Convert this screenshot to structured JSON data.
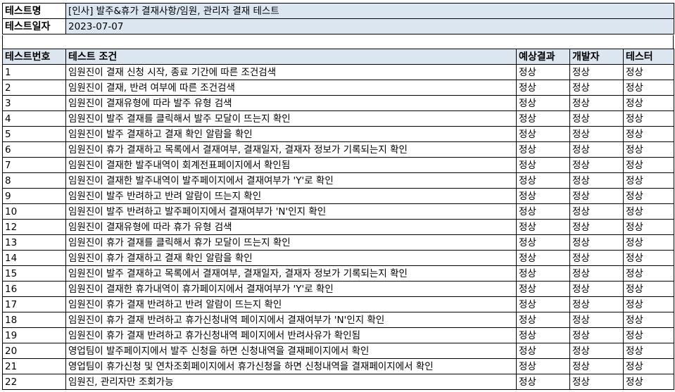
{
  "info": {
    "name_label": "테스트명",
    "name_value": "[인사] 발주&휴가 결재사항/임원, 관리자 결재 테스트",
    "date_label": "테스트일자",
    "date_value": "2023-07-07"
  },
  "table": {
    "headers": [
      "테스트번호",
      "테스트 조건",
      "예상결과",
      "개발자",
      "테스터"
    ],
    "rows": [
      [
        "1",
        "임원진이 결재 신청 시작, 종료 기간에 따른 조건검색",
        "정상",
        "정상",
        "정상"
      ],
      [
        "2",
        "임원진이 결재, 반려 여부에 따른 조건검색",
        "정상",
        "정상",
        "정상"
      ],
      [
        "3",
        "임원진이 결재유형에 따라 발주 유형 검색",
        "정상",
        "정상",
        "정상"
      ],
      [
        "4",
        "임원진이 발주 결재를 클릭해서 발주 모달이 뜨는지 확인",
        "정상",
        "정상",
        "정상"
      ],
      [
        "5",
        "임원진이 발주 결재하고 결재 확인 알람을 확인",
        "정상",
        "정상",
        "정상"
      ],
      [
        "6",
        "임원진이 휴가 결재하고 목록에서 결재여부, 결재일자, 결재자 정보가 기록되는지 확인",
        "정상",
        "정상",
        "정상"
      ],
      [
        "7",
        "임원진이 결재한 발주내역이 회계전표페이지에서 확인됨",
        "정상",
        "정상",
        "정상"
      ],
      [
        "8",
        "임원진이 결재한 발주내역이 발주페이지에서 결재여부가 'Y'로 확인",
        "정상",
        "정상",
        "정상"
      ],
      [
        "9",
        "임원진이 발주 반려하고 반려 알람이 뜨는지 확인",
        "정상",
        "정상",
        "정상"
      ],
      [
        "10",
        "임원진이 발주 반려하고 발주페이지에서 결재여부가 'N'인지 확인",
        "정상",
        "정상",
        "정상"
      ],
      [
        "12",
        "임원진이 결재유형에 따라 휴가 유형 검색",
        "정상",
        "정상",
        "정상"
      ],
      [
        "13",
        "임원진이 휴가 결재를 클릭해서 휴가 모달이 뜨는지 확인",
        "정상",
        "정상",
        "정상"
      ],
      [
        "14",
        "임원진이 휴가 결재하고 결재 확인 알람을 확인",
        "정상",
        "정상",
        "정상"
      ],
      [
        "15",
        "임원진이 발주 결재하고 목록에서 결재여부, 결재일자, 결재자 정보가 기록되는지 확인",
        "정상",
        "정상",
        "정상"
      ],
      [
        "16",
        "임원진이 결재한 휴가내역이 휴가페이지에서 결재여부가 'Y'로 확인",
        "정상",
        "정상",
        "정상"
      ],
      [
        "17",
        "임원진이 휴가 결재 반려하고 반려 알람이 뜨는지 확인",
        "정상",
        "정상",
        "정상"
      ],
      [
        "18",
        "임원진이 휴가 결재 반려하고 휴가신청내역 페이지에서 결재여부가 'N'인지 확인",
        "정상",
        "정상",
        "정상"
      ],
      [
        "19",
        "임원진이 휴가 결재 반려하고 휴가신청내역 페이지에서 반려사유가 확인됨",
        "정상",
        "정상",
        "정상"
      ],
      [
        "20",
        "영업팀이 발주페이지에서 발주 신청을 하면 신청내역을 결재페이지에서 확인",
        "정상",
        "정상",
        "정상"
      ],
      [
        "21",
        "영업팀이 휴가신청 및 연차조회페이지에서 휴가신청을 하면 신청내역을 결재페이지에서 확인",
        "정상",
        "정상",
        "정상"
      ],
      [
        "22",
        "임원진, 관리자만 조회가능",
        "정상",
        "정상",
        "정상"
      ]
    ]
  }
}
